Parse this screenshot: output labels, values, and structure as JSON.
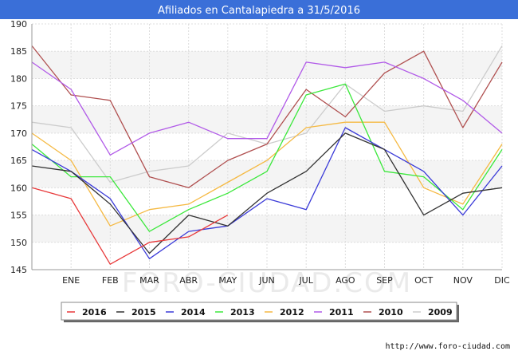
{
  "chart_data": {
    "type": "line",
    "title": "Afiliados en Cantalapiedra a 31/5/2016",
    "categories": [
      "",
      "ENE",
      "FEB",
      "MAR",
      "ABR",
      "MAY",
      "JUN",
      "JUL",
      "AGO",
      "SEP",
      "OCT",
      "NOV",
      "DIC"
    ],
    "ylim": [
      145,
      190
    ],
    "yticks": [
      145,
      150,
      155,
      160,
      165,
      170,
      175,
      180,
      185,
      190
    ],
    "grid": true,
    "legend_position": "bottom",
    "series": [
      {
        "name": "2016",
        "color": "#e8393a",
        "values": [
          160,
          158,
          146,
          150,
          151,
          155,
          null,
          null,
          null,
          null,
          null,
          null,
          null
        ]
      },
      {
        "name": "2015",
        "color": "#333333",
        "values": [
          164,
          163,
          157,
          148,
          155,
          153,
          159,
          163,
          170,
          167,
          155,
          159,
          160
        ]
      },
      {
        "name": "2014",
        "color": "#3a3ad8",
        "values": [
          167,
          163,
          158,
          147,
          152,
          153,
          158,
          156,
          171,
          167,
          163,
          155,
          164
        ]
      },
      {
        "name": "2013",
        "color": "#3ce83c",
        "values": [
          168,
          162,
          162,
          152,
          156,
          159,
          163,
          177,
          179,
          163,
          162,
          156,
          167
        ]
      },
      {
        "name": "2012",
        "color": "#f5b942",
        "values": [
          170,
          165,
          153,
          156,
          157,
          161,
          165,
          171,
          172,
          172,
          160,
          157,
          168
        ]
      },
      {
        "name": "2011",
        "color": "#b15ae8",
        "values": [
          183,
          178,
          166,
          170,
          172,
          169,
          169,
          183,
          182,
          183,
          180,
          176,
          170
        ]
      },
      {
        "name": "2010",
        "color": "#b05050",
        "values": [
          186,
          177,
          176,
          162,
          160,
          165,
          168,
          178,
          173,
          181,
          185,
          171,
          183
        ]
      },
      {
        "name": "2009",
        "color": "#cccccc",
        "values": [
          172,
          171,
          161,
          163,
          164,
          170,
          168,
          170,
          179,
          174,
          175,
          174,
          186
        ]
      }
    ]
  },
  "watermark": "FORO-CIUDAD.COM",
  "footer": {
    "url": "http://www.foro-ciudad.com"
  }
}
